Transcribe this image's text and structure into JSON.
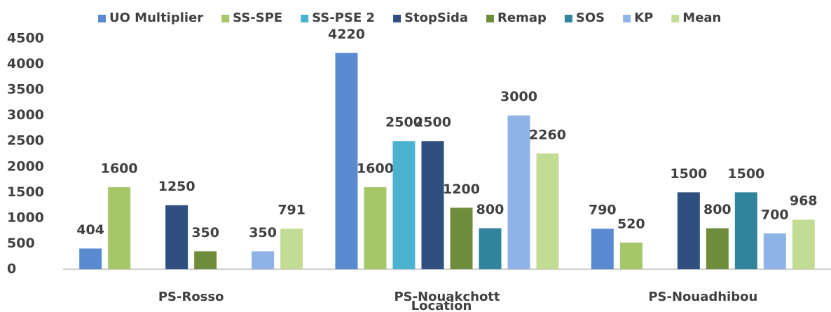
{
  "chart_data": {
    "type": "bar",
    "x_label": "Location",
    "categories": [
      "PS-Rosso",
      "PS-Nouakchott",
      "PS-Nouadhibou"
    ],
    "series": [
      {
        "name": "UO Multiplier",
        "color": "#5a8bd0",
        "values": [
          404,
          4220,
          790
        ]
      },
      {
        "name": "SS-SPE",
        "color": "#a5c768",
        "values": [
          1600,
          1600,
          520
        ]
      },
      {
        "name": "SS-PSE 2",
        "color": "#4bb3d0",
        "values": [
          null,
          2500,
          null
        ]
      },
      {
        "name": "StopSida",
        "color": "#2e4f80",
        "values": [
          1250,
          2500,
          1500
        ]
      },
      {
        "name": "Remap",
        "color": "#6e8c3c",
        "values": [
          350,
          1200,
          800
        ]
      },
      {
        "name": "SOS",
        "color": "#31849b",
        "values": [
          null,
          800,
          1500
        ]
      },
      {
        "name": "KP",
        "color": "#8fb3e6",
        "values": [
          350,
          3000,
          700
        ]
      },
      {
        "name": "Mean",
        "color": "#c3dc94",
        "values": [
          791,
          2260,
          968
        ]
      }
    ],
    "ylim": [
      0,
      4500
    ],
    "yticks": [
      0,
      500,
      1000,
      1500,
      2000,
      2500,
      3000,
      3500,
      4000,
      4500
    ],
    "legend": "top"
  }
}
